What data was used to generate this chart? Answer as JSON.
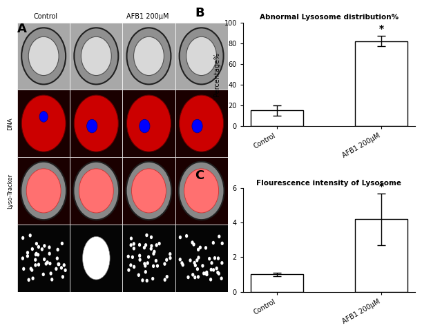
{
  "panel_B": {
    "title": "Abnormal Lysosome distribution%",
    "label": "B",
    "categories": [
      "Control",
      "AFB1 200μM"
    ],
    "values": [
      15,
      82
    ],
    "errors": [
      5,
      5
    ],
    "ylabel": "Percentage%",
    "ylim": [
      0,
      100
    ],
    "yticks": [
      0,
      20,
      40,
      60,
      80,
      100
    ],
    "bar_color": "white",
    "bar_edgecolor": "black",
    "significance": "*",
    "sig_bar_index": 1
  },
  "panel_C": {
    "title": "Flourescence intensity of Lysosome",
    "label": "C",
    "categories": [
      "Control",
      "AFB1 200μM"
    ],
    "values": [
      1.0,
      4.2
    ],
    "errors": [
      0.1,
      1.5
    ],
    "ylabel": "",
    "ylim": [
      0,
      6
    ],
    "yticks": [
      0,
      2,
      4,
      6
    ],
    "bar_color": "white",
    "bar_edgecolor": "black",
    "significance": "*",
    "sig_bar_index": 1
  },
  "panel_A_label": "A",
  "col_labels": [
    "Control",
    "AFB1 200μM"
  ],
  "figure_bg": "white"
}
